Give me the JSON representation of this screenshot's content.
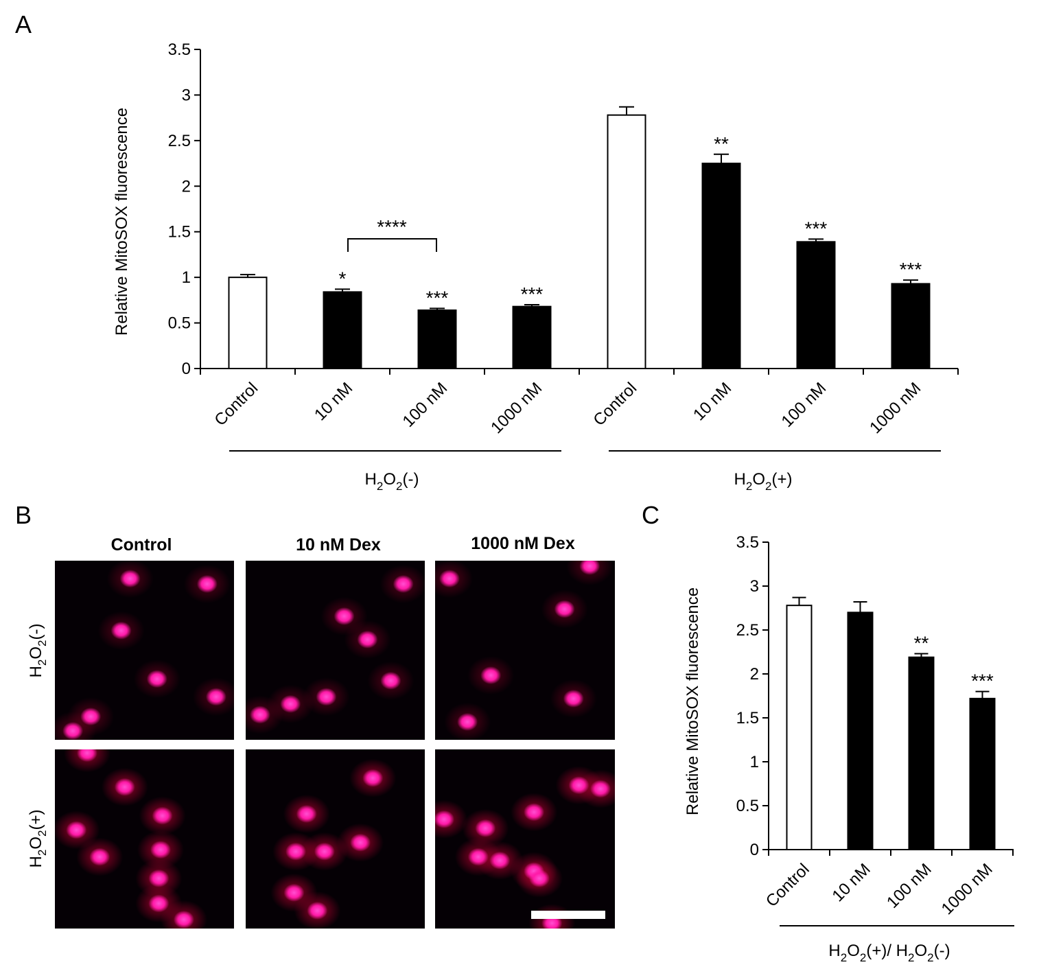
{
  "panels": {
    "a": "A",
    "b": "B",
    "c": "C"
  },
  "chart_data": [
    {
      "type": "bar",
      "panel": "A",
      "ylabel": "Relative MitoSOX fluorescence",
      "ylim": [
        0,
        3.5
      ],
      "yticks": [
        "0",
        "0.5",
        "1",
        "1.5",
        "2",
        "2.5",
        "3",
        "3.5"
      ],
      "categories": [
        "Control",
        "10 nM",
        "100 nM",
        "1000 nM",
        "Control",
        "10 nM",
        "100 nM",
        "1000 nM"
      ],
      "values": [
        1.0,
        0.84,
        0.64,
        0.68,
        2.78,
        2.25,
        1.39,
        0.93
      ],
      "errors": [
        0.03,
        0.03,
        0.02,
        0.02,
        0.09,
        0.1,
        0.03,
        0.04
      ],
      "fills": [
        "#ffffff",
        "#000000",
        "#000000",
        "#000000",
        "#ffffff",
        "#000000",
        "#000000",
        "#000000"
      ],
      "significance": [
        "",
        "*",
        "***",
        "***",
        "",
        "**",
        "***",
        "***"
      ],
      "bracket": {
        "from": 1,
        "to": 2,
        "label": "****"
      },
      "groups": [
        {
          "label": "H2O2(-)",
          "base": "H",
          "sub1": "2",
          "mid": "O",
          "sub2": "2",
          "tail": "(-)"
        },
        {
          "label": "H2O2(+)",
          "base": "H",
          "sub1": "2",
          "mid": "O",
          "sub2": "2",
          "tail": "(+)"
        }
      ]
    },
    {
      "type": "bar",
      "panel": "C",
      "ylabel": "Relative MitoSOX fluorescence",
      "ylim": [
        0,
        3.5
      ],
      "yticks": [
        "0",
        "0.5",
        "1",
        "1.5",
        "2",
        "2.5",
        "3",
        "3.5"
      ],
      "categories": [
        "Control",
        "10 nM",
        "100 nM",
        "1000 nM"
      ],
      "values": [
        2.78,
        2.7,
        2.19,
        1.72
      ],
      "errors": [
        0.09,
        0.12,
        0.04,
        0.08
      ],
      "fills": [
        "#ffffff",
        "#000000",
        "#000000",
        "#000000"
      ],
      "significance": [
        "",
        "",
        "**",
        "***"
      ],
      "group": {
        "label": "H2O2(+)/ H2O2(-)"
      }
    }
  ],
  "micrographs": {
    "columns": [
      "Control",
      "10 nM Dex",
      "1000 nM Dex"
    ],
    "rows": [
      "H2O2(-)",
      "H2O2(+)"
    ],
    "background_color": "#050005",
    "nucleus_color": "#ff1aa8",
    "cytoplasm_color": "#b4002f",
    "scale_bar_color": "#ffffff"
  }
}
